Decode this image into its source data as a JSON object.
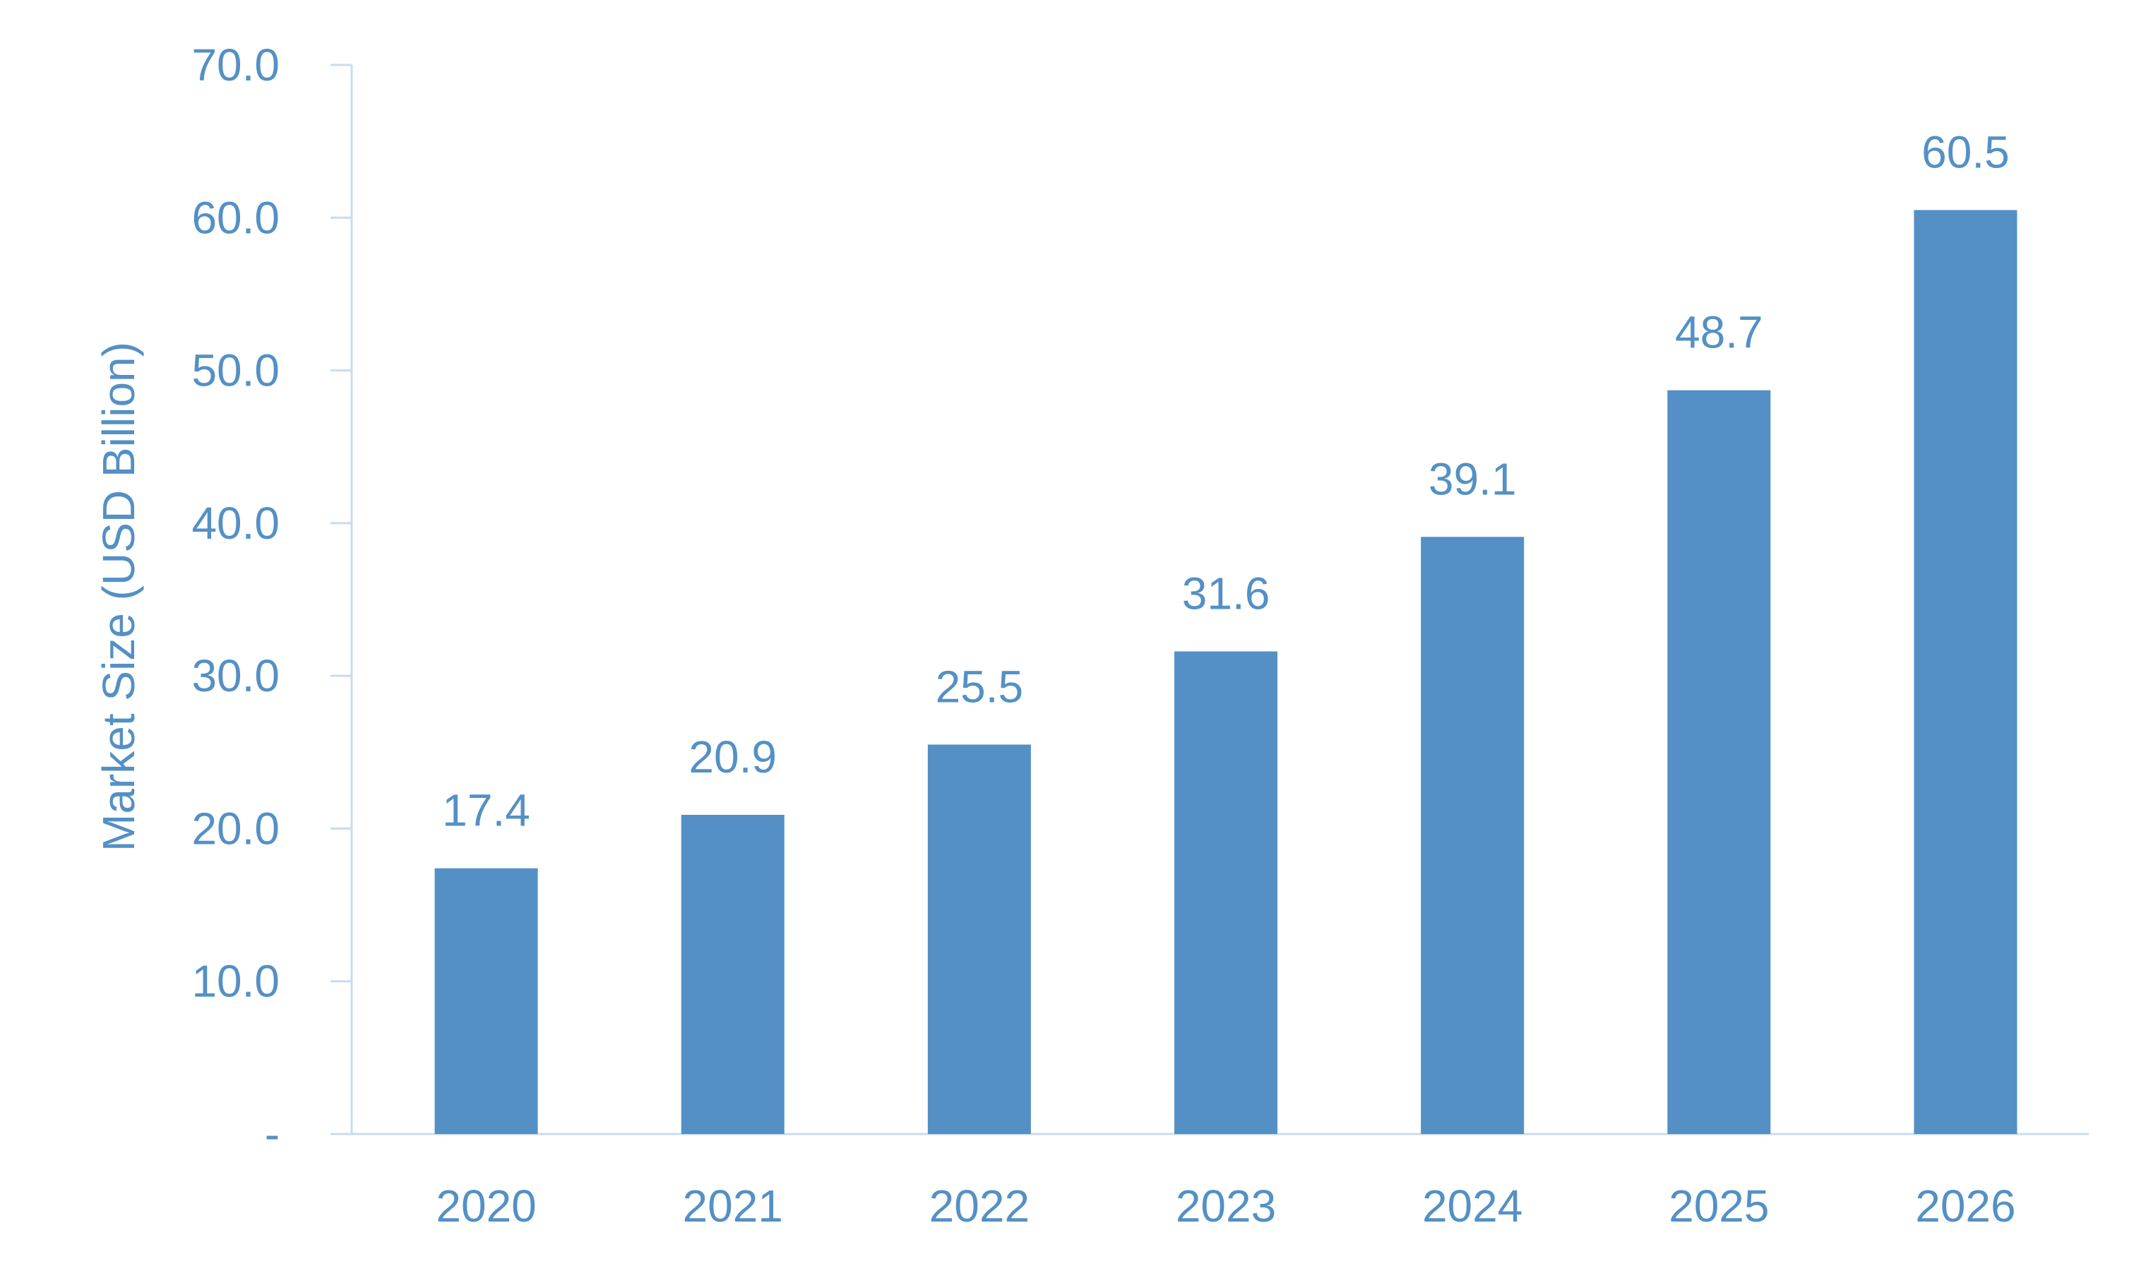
{
  "colors": {
    "bar": "#5490c5",
    "text": "#5490c5",
    "axis": "#c9dcef",
    "background": "#ffffff"
  },
  "chart_data": {
    "type": "bar",
    "title": "",
    "xlabel": "",
    "ylabel": "Market Size (USD Billion)",
    "categories": [
      "2020",
      "2021",
      "2022",
      "2023",
      "2024",
      "2025",
      "2026"
    ],
    "values": [
      17.4,
      20.9,
      25.5,
      31.6,
      39.1,
      48.7,
      60.5
    ],
    "ylim": [
      0,
      70
    ],
    "y_ticks": [
      0,
      10,
      20,
      30,
      40,
      50,
      60,
      70
    ],
    "y_tick_labels": [
      "-",
      "10.0",
      "20.0",
      "30.0",
      "40.0",
      "50.0",
      "60.0",
      "70.0"
    ],
    "data_labels": [
      "17.4",
      "20.9",
      "25.5",
      "31.6",
      "39.1",
      "48.7",
      "60.5"
    ],
    "grid": false,
    "legend": "none"
  }
}
